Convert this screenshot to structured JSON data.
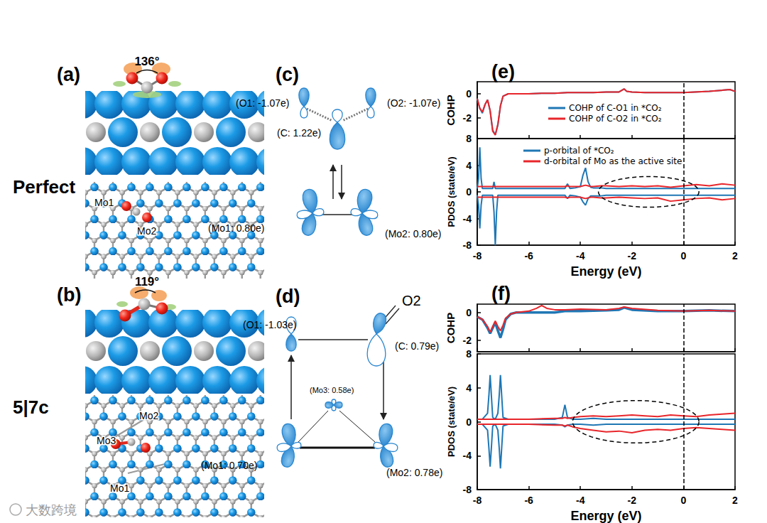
{
  "figure": {
    "panels": {
      "a": {
        "label": "(a)",
        "angle": "136°",
        "name": "Perfect",
        "atoms": [
          "Mo1",
          "Mo2"
        ]
      },
      "b": {
        "label": "(b)",
        "angle": "119°",
        "name": "5|7c",
        "atoms": [
          "Mo3",
          "Mo2",
          "Mo1"
        ]
      },
      "c": {
        "label": "(c)",
        "charges": [
          "(O1: -1.07e)",
          "(O2: -1.07e)",
          "(C: 1.22e)",
          "(Mo1: 0.80e)",
          "(Mo2: 0.80e)"
        ]
      },
      "d": {
        "label": "(d)",
        "charges": [
          "(O1: -1.03e)",
          "(C: 0.79e)",
          "(Mo3: 0.58e)",
          "(Mo1: 0.70e)",
          "(Mo2: 0.78e)"
        ],
        "bond_label": "O2"
      },
      "e": {
        "label": "(e)"
      },
      "f": {
        "label": "(f)"
      }
    },
    "watermark": "大数跨境"
  },
  "chart_data": [
    {
      "type": "line",
      "y_label": "COHP",
      "x": [
        -8,
        -7.9,
        -7.8,
        -7.7,
        -7.6,
        -7.5,
        -7.4,
        -7.3,
        -7.2,
        -7.1,
        -7,
        -6.8,
        -6.5,
        -6,
        -5.5,
        -5,
        -4.5,
        -4,
        -3.5,
        -3,
        -2.5,
        -2.3,
        -2.2,
        -2,
        -1.5,
        -1,
        0,
        1,
        1.8,
        2
      ],
      "xlim": [
        -8,
        2
      ],
      "xticks": [
        -8,
        -6,
        -4,
        -2,
        0,
        2
      ],
      "ylim": [
        -3.7,
        1
      ],
      "yticks": [
        -2,
        0
      ],
      "tick_labels": "y",
      "grid": false,
      "legend": "right",
      "reference_x": 0,
      "series": [
        {
          "name": "COHP of C-O1 in *CO₂",
          "color": "#1f77b4",
          "values": [
            -0.4,
            -1.2,
            -1.6,
            -0.9,
            -0.5,
            -1.4,
            -3.0,
            -3.4,
            -2.6,
            -1.0,
            -0.2,
            0,
            0,
            0,
            0.05,
            0.05,
            0.1,
            0.1,
            0.1,
            0.15,
            0.15,
            0.4,
            0.2,
            0.15,
            0.1,
            0.1,
            0.1,
            0.2,
            0.35,
            0.2
          ]
        },
        {
          "name": "COHP of C-O2 in *CO₂",
          "color": "#e8262b",
          "values": [
            -0.4,
            -1.2,
            -1.5,
            -0.9,
            -0.5,
            -1.4,
            -3.1,
            -3.4,
            -2.5,
            -1.0,
            -0.2,
            0,
            0,
            0,
            0.05,
            0.05,
            0.1,
            0.1,
            0.1,
            0.15,
            0.15,
            0.4,
            0.2,
            0.15,
            0.1,
            0.1,
            0.1,
            0.2,
            0.35,
            0.2
          ]
        }
      ]
    },
    {
      "type": "line",
      "y_label": "PDOS (state/eV)",
      "x_label": "Energy (eV)",
      "x": [
        -8,
        -7.95,
        -7.9,
        -7.85,
        -7.8,
        -7.6,
        -7.4,
        -7.35,
        -7.3,
        -7.25,
        -7.2,
        -7,
        -6.5,
        -6,
        -5.5,
        -5,
        -4.6,
        -4.5,
        -4.4,
        -4.2,
        -4,
        -3.9,
        -3.8,
        -3.7,
        -3.6,
        -3.5,
        -3.2,
        -3,
        -2.5,
        -2,
        -1.5,
        -1,
        -0.5,
        0,
        0.5,
        1,
        1.5,
        2
      ],
      "xlim": [
        -8,
        2
      ],
      "xticks": [
        -8,
        -6,
        -4,
        -2,
        0,
        2
      ],
      "ylim": [
        -8,
        8
      ],
      "yticks": [
        -8,
        -4,
        0,
        4,
        8
      ],
      "grid": false,
      "legend": "upper left",
      "reference_x": 0,
      "highlight_region": {
        "x": [
          -3.3,
          0.6
        ],
        "y": [
          -2.3,
          2.3
        ]
      },
      "series": [
        {
          "name": "p-orbital of *CO₂",
          "color": "#1f77b4",
          "values": [
            0.5,
            2,
            6.7,
            2,
            0.5,
            0.5,
            0.5,
            1.5,
            0.5,
            0.5,
            0.5,
            0.5,
            0.5,
            0.5,
            0.5,
            0.5,
            0.5,
            1.2,
            0.5,
            0.6,
            0.8,
            2.5,
            3.6,
            1.5,
            0.7,
            0.6,
            0.6,
            0.5,
            0.5,
            0.5,
            0.5,
            0.5,
            0.5,
            0.5,
            0.5,
            0.5,
            0.5,
            0.5
          ],
          "values_down": [
            -0.5,
            -2,
            -5.5,
            -2,
            -0.5,
            -0.5,
            -0.5,
            -3,
            -8,
            -3,
            -0.5,
            -0.5,
            -0.5,
            -0.5,
            -0.5,
            -0.5,
            -0.5,
            -1,
            -0.5,
            -0.6,
            -0.8,
            -1.5,
            -2,
            -1,
            -0.6,
            -0.6,
            -0.6,
            -0.5,
            -0.5,
            -0.5,
            -0.5,
            -0.5,
            -0.5,
            -0.5,
            -0.5,
            -0.5,
            -0.5,
            -0.5
          ]
        },
        {
          "name": "d-orbital of Mo as the active site",
          "color": "#e8262b",
          "values": [
            0.8,
            0.8,
            0.8,
            0.8,
            0.8,
            0.8,
            0.8,
            0.8,
            0.8,
            0.8,
            0.8,
            0.8,
            0.8,
            0.8,
            0.8,
            0.8,
            0.8,
            0.9,
            0.8,
            0.8,
            0.8,
            0.9,
            1.0,
            0.9,
            0.8,
            0.8,
            0.9,
            0.9,
            0.8,
            0.9,
            0.8,
            0.9,
            0.7,
            0.9,
            1.1,
            0.9,
            1.2,
            1.0
          ],
          "values_down": [
            -0.8,
            -0.8,
            -0.8,
            -0.8,
            -0.8,
            -0.8,
            -0.8,
            -0.8,
            -0.8,
            -0.8,
            -0.8,
            -0.8,
            -0.8,
            -0.8,
            -0.8,
            -0.8,
            -0.8,
            -0.9,
            -0.8,
            -0.8,
            -0.8,
            -0.9,
            -1.0,
            -0.9,
            -0.8,
            -0.8,
            -0.9,
            -0.9,
            -0.8,
            -0.9,
            -1.0,
            -0.9,
            -1.4,
            -1.2,
            -1.0,
            -0.9,
            -1.2,
            -1.0
          ]
        }
      ]
    },
    {
      "type": "line",
      "y_label": "COHP",
      "x": [
        -8,
        -7.8,
        -7.6,
        -7.5,
        -7.4,
        -7.3,
        -7.2,
        -7.1,
        -7,
        -6.9,
        -6.7,
        -6.5,
        -6,
        -5.7,
        -5.5,
        -5.3,
        -5,
        -4.6,
        -4,
        -3,
        -2.5,
        -2.3,
        -2,
        -1,
        0,
        1,
        2
      ],
      "xlim": [
        -8,
        2
      ],
      "xticks": [
        -8,
        -6,
        -4,
        -2,
        0,
        2
      ],
      "ylim": [
        -2.8,
        0.6
      ],
      "yticks": [
        -2,
        0
      ],
      "tick_labels": "y",
      "grid": false,
      "reference_x": 0,
      "series": [
        {
          "color": "#1f77b4",
          "values": [
            -0.3,
            -0.5,
            -1.1,
            -1.5,
            -1.1,
            -0.7,
            -1.3,
            -1.8,
            -1.2,
            -0.5,
            -0.1,
            0,
            0,
            0,
            0,
            0,
            0,
            0.1,
            0.1,
            0.15,
            0.2,
            0.35,
            0.2,
            0.1,
            0.1,
            0.15,
            0.1
          ]
        },
        {
          "color": "#e8262b",
          "values": [
            -0.3,
            -0.5,
            -1.0,
            -1.4,
            -1.0,
            -0.6,
            -1.0,
            -1.3,
            -0.9,
            -0.4,
            -0.1,
            0,
            0.1,
            0.3,
            0.5,
            0.3,
            0.2,
            0.2,
            0.25,
            0.2,
            0.3,
            0.4,
            0.3,
            0.15,
            0.1,
            0.15,
            0.1
          ]
        }
      ]
    },
    {
      "type": "line",
      "y_label": "PDOS (state/eV)",
      "x_label": "Energy (eV)",
      "x": [
        -8,
        -7.8,
        -7.6,
        -7.55,
        -7.5,
        -7.45,
        -7.4,
        -7.3,
        -7.2,
        -7.15,
        -7.1,
        -7.05,
        -7,
        -6.8,
        -6,
        -5,
        -4.7,
        -4.6,
        -4.5,
        -4.3,
        -4,
        -3.5,
        -3,
        -2.5,
        -2,
        -1.5,
        -1,
        -0.5,
        0,
        0.5,
        1,
        1.5,
        2
      ],
      "xlim": [
        -8,
        2
      ],
      "xticks": [
        -8,
        -6,
        -4,
        -2,
        0,
        2
      ],
      "ylim": [
        -8,
        8
      ],
      "yticks": [
        -8,
        -4,
        0,
        4,
        8
      ],
      "grid": false,
      "reference_x": 0,
      "highlight_region": {
        "x": [
          -4.3,
          0.6
        ],
        "y": [
          -2.5,
          2.5
        ]
      },
      "series": [
        {
          "color": "#1f77b4",
          "values": [
            0.3,
            0.3,
            1,
            3,
            5.5,
            3,
            0.5,
            0.3,
            1,
            3,
            5.5,
            3,
            0.5,
            0.3,
            0.3,
            0.3,
            0.5,
            2,
            0.5,
            0.3,
            0.3,
            0.4,
            0.3,
            0.3,
            0.3,
            0.3,
            0.3,
            0.3,
            0.3,
            0.3,
            0.3,
            0.3,
            0.3
          ],
          "values_down": [
            -0.3,
            -0.3,
            -1,
            -3,
            -5.3,
            -3,
            -0.5,
            -0.3,
            -1,
            -3,
            -5.5,
            -3,
            -0.5,
            -0.3,
            -0.3,
            -0.3,
            -0.4,
            -0.6,
            -0.4,
            -0.3,
            -0.3,
            -0.4,
            -0.3,
            -0.3,
            -0.3,
            -0.3,
            -0.3,
            -0.3,
            -0.3,
            -0.3,
            -0.3,
            -0.3,
            -0.3
          ]
        },
        {
          "color": "#e8262b",
          "values": [
            0.3,
            0.3,
            0.3,
            0.3,
            0.3,
            0.3,
            0.3,
            0.3,
            0.3,
            0.3,
            0.3,
            0.3,
            0.3,
            0.3,
            0.3,
            0.4,
            0.4,
            0.5,
            0.4,
            0.5,
            0.6,
            0.7,
            0.6,
            0.7,
            0.8,
            0.7,
            0.6,
            0.8,
            0.7,
            0.6,
            0.8,
            0.9,
            1.0
          ],
          "values_down": [
            -0.3,
            -0.3,
            -0.3,
            -0.3,
            -0.3,
            -0.3,
            -0.3,
            -0.3,
            -0.3,
            -0.3,
            -0.3,
            -0.3,
            -0.3,
            -0.3,
            -0.3,
            -0.4,
            -0.4,
            -0.5,
            -0.4,
            -0.6,
            -0.8,
            -1.0,
            -1.2,
            -1.1,
            -1.3,
            -1.0,
            -0.9,
            -1.0,
            -0.8,
            -0.7,
            -0.8,
            -0.9,
            -1.0
          ]
        }
      ]
    }
  ]
}
